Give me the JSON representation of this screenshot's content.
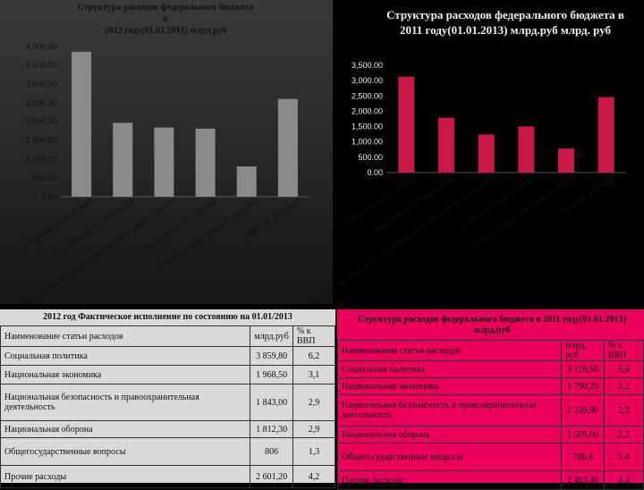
{
  "chart_data": [
    {
      "type": "bar",
      "title": "Структура расходов федерального бюджета\nв\n2012 году(01.01.2013) млрд.руб",
      "categories": [
        "Социальная политика",
        "Национальная экономика",
        "Национальная безопасность и правоохранительная деятельность",
        "Национальная оборона",
        "Общегосударственные вопросы",
        "Прочие расходы"
      ],
      "values": [
        3859.8,
        1968.5,
        1843.0,
        1812.3,
        806.0,
        2601.2
      ],
      "ylim": [
        0,
        4000
      ],
      "yticks": [
        "0.00",
        "500.00",
        "1,000.00",
        "1,500.00",
        "2,000.00",
        "2,500.00",
        "3,000.00",
        "3,500.00",
        "4,000.00"
      ],
      "bar_color": "#8a8a8a"
    },
    {
      "type": "bar",
      "title": "Структура расходов федерального бюджета в 2011 году(01.01.2013) млрд.руб млрд. руб",
      "categories": [
        "Социальная политика",
        "Национальная экономика",
        "Национальная безопасность и правоохранительная деятельность",
        "Национальная оборона",
        "Общегосударственные вопросы",
        "Прочие расходы"
      ],
      "values": [
        3128.5,
        1790.2,
        1239.8,
        1505.0,
        786.4,
        2463.4
      ],
      "ylim": [
        0,
        3500
      ],
      "yticks": [
        "0.00",
        "500.00",
        "1,000.00",
        "1,500.00",
        "2,000.00",
        "2,500.00",
        "3,000.00",
        "3,500.00"
      ],
      "bar_color": "#c8184a"
    }
  ],
  "table2012": {
    "title": "2012 год Фактическое исполнение по состоянию на 01.01/2013",
    "headers": [
      "Наименование статьи расходов",
      "млрд.руб",
      "% к ВВП"
    ],
    "rows": [
      [
        "Социальная политика",
        "3 859,80",
        "6,2"
      ],
      [
        "Национальная экономика",
        "1 968,50",
        "3,1"
      ],
      [
        "Национальная безопасность и правоохранительная деятельность",
        "1 843,00",
        "2,9"
      ],
      [
        "Национальная оборона",
        "1 812,30",
        "2,9"
      ],
      [
        "Общегосударственные вопросы",
        "806",
        "1,3"
      ],
      [
        "Прочие расходы",
        "2 601,20",
        "4,2"
      ]
    ]
  },
  "table2011": {
    "title": "Структура расходов федерального бюджета в 2011 году(01.01.2013) млрд.руб",
    "headers": [
      "Наименование статьи расходов",
      "млрд. руб",
      "% к ВВП"
    ],
    "rows": [
      [
        "Социальная политика",
        "3 128,50",
        "5,6"
      ],
      [
        "Национальная экономика",
        "1 790,20",
        "3,2"
      ],
      [
        "Национальная безопасность и правоохранительная деятельность",
        "1 239,80",
        "2,3"
      ],
      [
        "Национальная оборона",
        "1 505,00",
        "2,7"
      ],
      [
        "Общегосударственные вопросы",
        "786,4",
        "1,4"
      ],
      [
        "Прочие расходы",
        "2 463,40",
        "4,4"
      ]
    ]
  }
}
